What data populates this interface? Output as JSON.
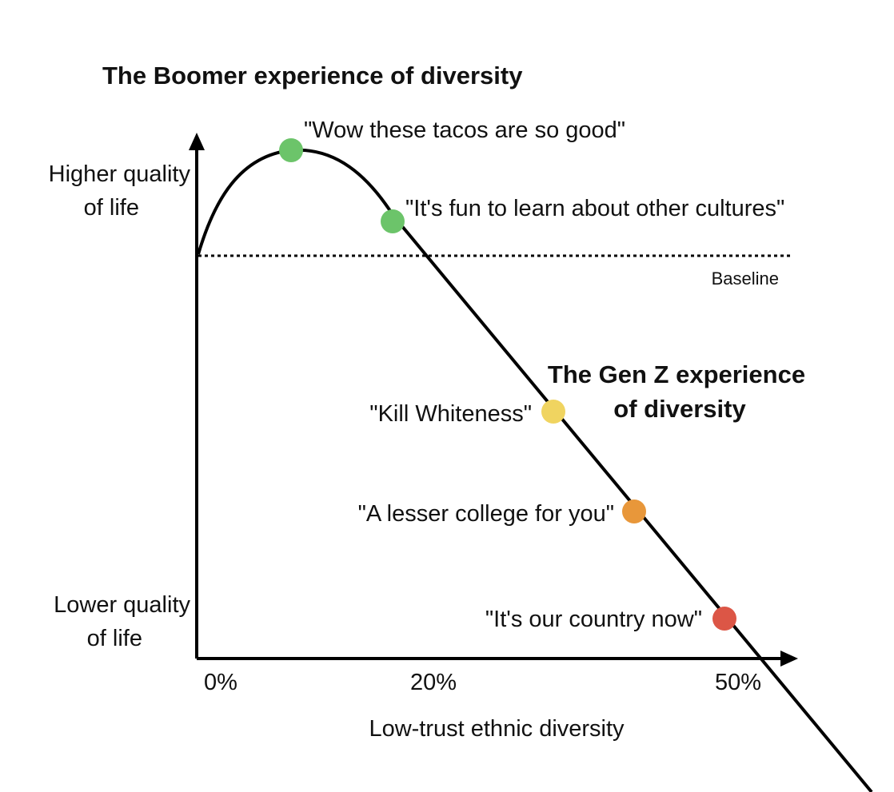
{
  "boomer_title": "The Boomer experience of diversity",
  "genz_title_line1": "The Gen Z experience",
  "genz_title_line2": "of diversity",
  "y_axis": {
    "high_line1": "Higher quality",
    "high_line2": "of life",
    "low_line1": "Lower quality",
    "low_line2": "of life"
  },
  "x_axis": {
    "label": "Low-trust ethnic diversity",
    "ticks": [
      "0%",
      "20%",
      "50%"
    ]
  },
  "baseline_label": "Baseline",
  "points": [
    {
      "quote": "\"Wow these tacos are so good\"",
      "color": "#6cc46a"
    },
    {
      "quote": "\"It's fun to learn about other cultures\"",
      "color": "#6cc46a"
    },
    {
      "quote": "\"Kill Whiteness\"",
      "color": "#f0d460"
    },
    {
      "quote": "\"A lesser college for you\"",
      "color": "#e8973a"
    },
    {
      "quote": "\"It's our country now\"",
      "color": "#dc5646"
    }
  ]
}
